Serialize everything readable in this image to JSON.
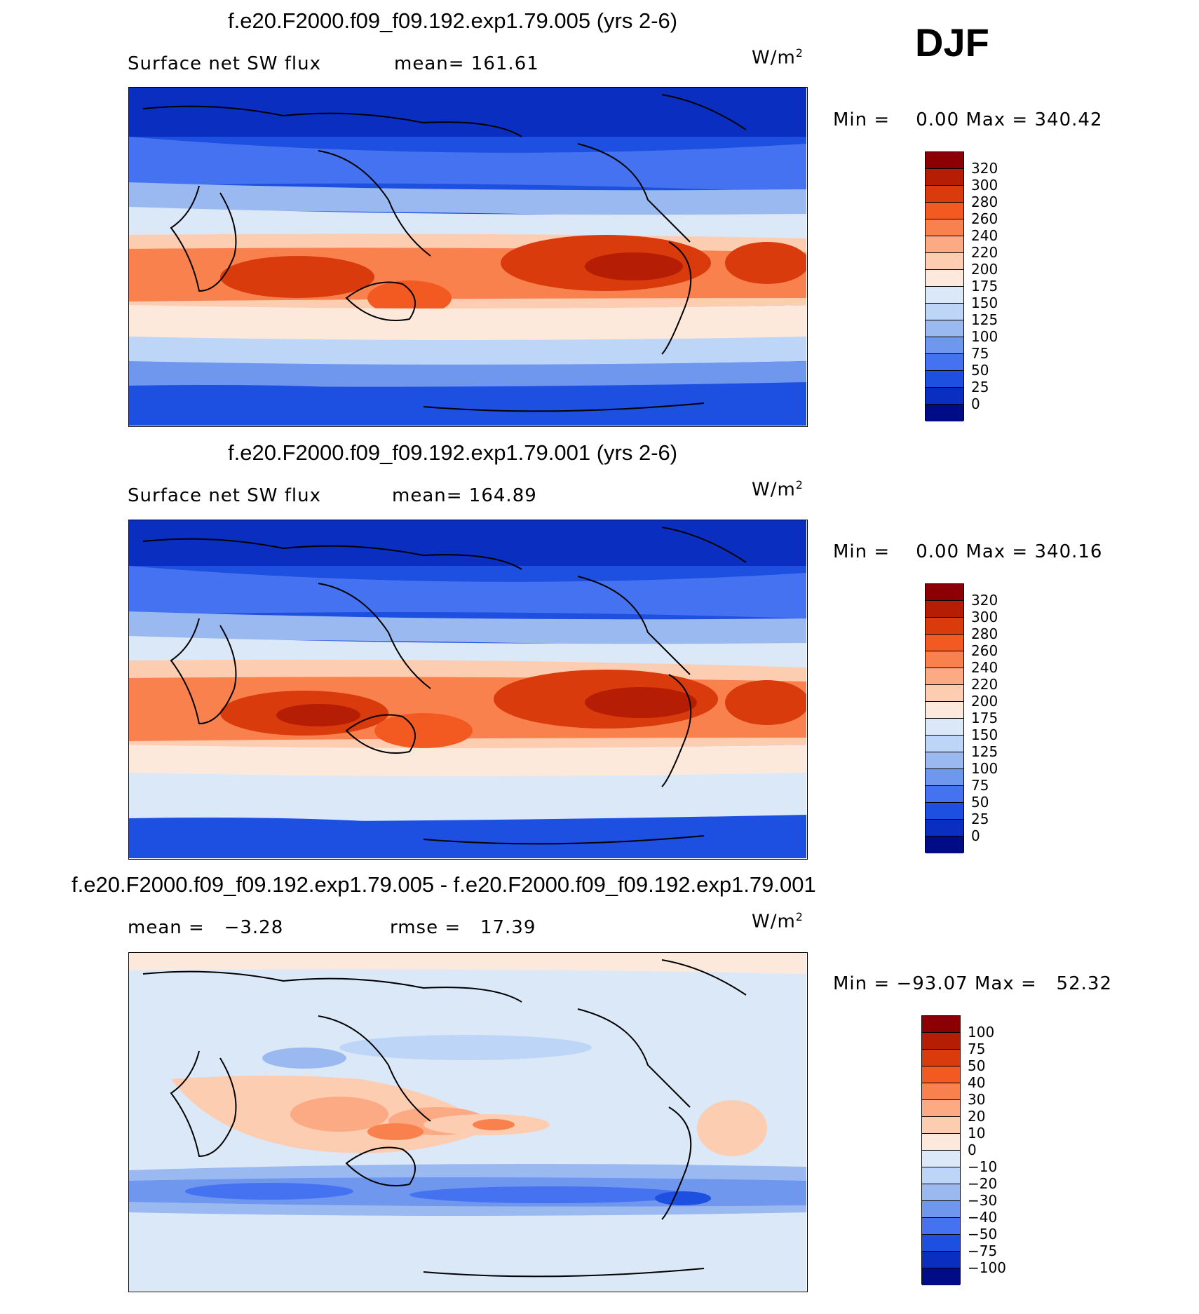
{
  "season": "DJF",
  "chart_data": [
    {
      "type": "heatmap",
      "title": "f.e20.F2000.f09_f09.192.exp1.79.005 (yrs 2-6)",
      "variable": "Surface net SW flux",
      "stat_label": "mean=",
      "stat_value": "161.61",
      "units": "W/m",
      "units_exp": "2",
      "min_label": "Min =",
      "min": "0.00",
      "max_label": "Max =",
      "max": "340.42",
      "levels": [
        "320",
        "300",
        "280",
        "260",
        "240",
        "220",
        "200",
        "175",
        "150",
        "125",
        "100",
        "75",
        "50",
        "25",
        "0"
      ],
      "colors": [
        "#8c0003",
        "#b51d04",
        "#d93b0c",
        "#f25a22",
        "#f9814d",
        "#fbaa83",
        "#fdcdb1",
        "#fde9db",
        "#dbe8f8",
        "#bdd5f6",
        "#9ab9f1",
        "#6f97ee",
        "#4572f0",
        "#1d4fe0",
        "#0a2fc0",
        "#000c86"
      ]
    },
    {
      "type": "heatmap",
      "title": "f.e20.F2000.f09_f09.192.exp1.79.001 (yrs 2-6)",
      "variable": "Surface net SW flux",
      "stat_label": "mean=",
      "stat_value": "164.89",
      "units": "W/m",
      "units_exp": "2",
      "min_label": "Min =",
      "min": "0.00",
      "max_label": "Max =",
      "max": "340.16",
      "levels": [
        "320",
        "300",
        "280",
        "260",
        "240",
        "220",
        "200",
        "175",
        "150",
        "125",
        "100",
        "75",
        "50",
        "25",
        "0"
      ],
      "colors": [
        "#8c0003",
        "#b51d04",
        "#d93b0c",
        "#f25a22",
        "#f9814d",
        "#fbaa83",
        "#fdcdb1",
        "#fde9db",
        "#dbe8f8",
        "#bdd5f6",
        "#9ab9f1",
        "#6f97ee",
        "#4572f0",
        "#1d4fe0",
        "#0a2fc0",
        "#000c86"
      ]
    },
    {
      "type": "heatmap",
      "title": "f.e20.F2000.f09_f09.192.exp1.79.005 - f.e20.F2000.f09_f09.192.exp1.79.001",
      "variable": "mean =",
      "stat_label": "rmse =",
      "mean_value": "−3.28",
      "stat_value": "17.39",
      "units": "W/m",
      "units_exp": "2",
      "min_label": "Min =",
      "min": "−93.07",
      "max_label": "Max =",
      "max": "52.32",
      "levels": [
        "100",
        "75",
        "50",
        "40",
        "30",
        "20",
        "10",
        "0",
        "−10",
        "−20",
        "−30",
        "−40",
        "−50",
        "−75",
        "−100"
      ],
      "colors": [
        "#8c0003",
        "#b51d04",
        "#d93b0c",
        "#f25a22",
        "#f9814d",
        "#fbaa83",
        "#fdcdb1",
        "#fde9db",
        "#dbe8f8",
        "#bdd5f6",
        "#9ab9f1",
        "#6f97ee",
        "#4572f0",
        "#1d4fe0",
        "#0a2fc0",
        "#000c86"
      ]
    }
  ]
}
